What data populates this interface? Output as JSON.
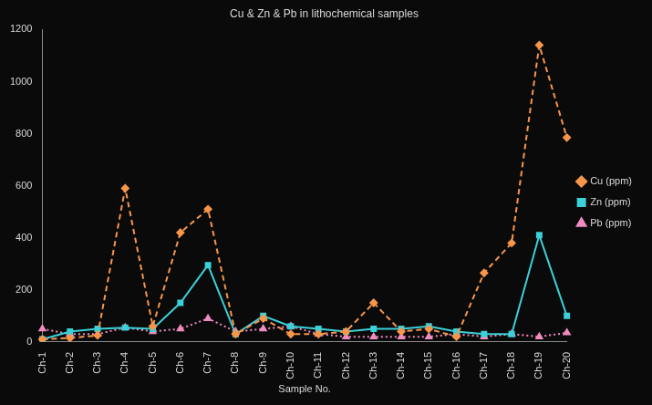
{
  "chart_data": {
    "type": "line",
    "title": "Cu & Zn & Pb in lithochemical samples",
    "x_label": "Sample No.",
    "categories": [
      "Ch-1",
      "Ch-2",
      "Ch-3",
      "Ch-4",
      "Ch-5",
      "Ch-6",
      "Ch-7",
      "Ch-8",
      "Ch-9",
      "Ch-10",
      "Ch-11",
      "Ch-12",
      "Ch-13",
      "Ch-14",
      "Ch-15",
      "Ch-16",
      "Ch-17",
      "Ch-18",
      "Ch-19",
      "Ch-20"
    ],
    "series": [
      {
        "name": "Cu (ppm)",
        "color": "#f7964a",
        "marker": "diamond",
        "line_style": "dashed",
        "values": [
          10,
          15,
          25,
          590,
          60,
          420,
          510,
          30,
          90,
          30,
          30,
          40,
          150,
          40,
          50,
          20,
          265,
          380,
          1140,
          785
        ]
      },
      {
        "name": "Zn (ppm)",
        "color": "#3cd0d8",
        "marker": "square",
        "line_style": "solid",
        "values": [
          10,
          40,
          50,
          55,
          50,
          150,
          295,
          30,
          100,
          60,
          50,
          40,
          50,
          50,
          60,
          40,
          30,
          30,
          410,
          100
        ]
      },
      {
        "name": "Pb (ppm)",
        "color": "#f08cc0",
        "marker": "triangle",
        "line_style": "dotted",
        "values": [
          50,
          30,
          30,
          55,
          40,
          50,
          90,
          40,
          50,
          60,
          30,
          20,
          20,
          20,
          20,
          30,
          20,
          30,
          20,
          35
        ]
      }
    ],
    "ylim": [
      0,
      1200
    ],
    "yticks": [
      0,
      200,
      400,
      600,
      800,
      1000,
      1200
    ],
    "grid": false,
    "legend": "right"
  }
}
